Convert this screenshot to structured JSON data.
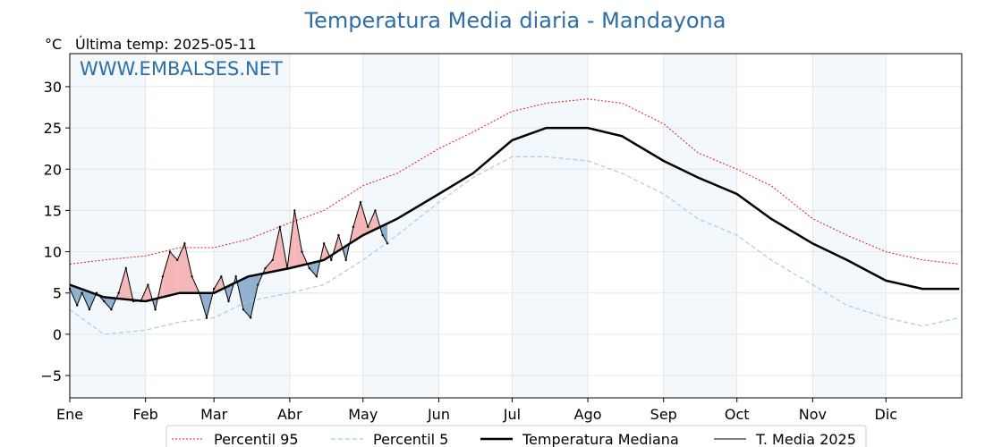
{
  "chart_data": {
    "type": "line",
    "title": "Temperatura Media diaria - Mandayona",
    "unit_label": "°C",
    "last_update_label": "Última temp: 2025-05-11",
    "watermark": "WWW.EMBALSES.NET",
    "xlabel": "",
    "ylabel": "",
    "ylim": [
      -7.7,
      34.0
    ],
    "yticks": [
      -5,
      0,
      5,
      10,
      15,
      20,
      25,
      30
    ],
    "grid": true,
    "legend_position": "bottom",
    "months": [
      "Ene",
      "Feb",
      "Mar",
      "Abr",
      "May",
      "Jun",
      "Jul",
      "Ago",
      "Sep",
      "Oct",
      "Nov",
      "Dic"
    ],
    "x_days": [
      1,
      15,
      32,
      46,
      60,
      74,
      91,
      105,
      121,
      135,
      152,
      166,
      182,
      196,
      213,
      227,
      244,
      258,
      274,
      288,
      305,
      319,
      335,
      350,
      365
    ],
    "series": [
      {
        "name": "Percentil 95",
        "color": "#e31a1c",
        "style": "dotted",
        "values": [
          8.5,
          9.0,
          9.5,
          10.5,
          10.5,
          11.5,
          13.5,
          15.0,
          18.0,
          19.5,
          22.5,
          24.5,
          27.0,
          28.0,
          28.5,
          28.0,
          25.5,
          22.0,
          20.0,
          18.0,
          14.0,
          12.0,
          10.0,
          9.0,
          8.5
        ]
      },
      {
        "name": "Percentil 5",
        "color": "#a6cee3",
        "style": "dashed",
        "values": [
          3.0,
          0.0,
          0.5,
          1.5,
          2.0,
          4.0,
          5.0,
          6.0,
          9.0,
          12.0,
          16.0,
          19.0,
          21.5,
          21.5,
          21.0,
          19.5,
          17.0,
          14.0,
          12.0,
          9.0,
          6.0,
          3.5,
          2.0,
          1.0,
          2.0
        ]
      },
      {
        "name": "Temperatura Mediana",
        "color": "#000000",
        "style": "solid-thick",
        "values": [
          6.0,
          4.5,
          4.0,
          5.0,
          5.0,
          7.0,
          8.0,
          9.0,
          12.0,
          14.0,
          17.0,
          19.5,
          23.5,
          25.0,
          25.0,
          24.0,
          21.0,
          19.0,
          17.0,
          14.0,
          11.0,
          9.0,
          6.5,
          5.5,
          5.5
        ]
      },
      {
        "name": "T. Media 2025",
        "color": "#000000",
        "style": "solid-thin",
        "x": [
          1,
          4,
          6,
          9,
          12,
          15,
          18,
          21,
          24,
          27,
          30,
          33,
          36,
          39,
          42,
          45,
          48,
          51,
          54,
          57,
          60,
          63,
          66,
          69,
          72,
          75,
          78,
          81,
          84,
          87,
          90,
          93,
          96,
          99,
          102,
          105,
          108,
          111,
          114,
          117,
          120,
          123,
          126,
          129,
          131
        ],
        "values": [
          5.5,
          3.5,
          5.0,
          3.0,
          5.0,
          4.0,
          3.0,
          5.0,
          8.0,
          4.0,
          4.0,
          6.0,
          3.0,
          7.0,
          10.0,
          9.0,
          11.0,
          7.0,
          5.0,
          2.0,
          5.5,
          7.0,
          4.0,
          7.0,
          3.0,
          2.0,
          6.0,
          8.0,
          9.0,
          13.0,
          8.0,
          15.0,
          10.0,
          8.0,
          7.0,
          11.0,
          9.0,
          12.0,
          9.0,
          13.0,
          16.0,
          13.0,
          15.0,
          12.0,
          11.0
        ]
      }
    ],
    "fill_above_color": "#f4b6b6",
    "fill_below_color": "#8fb0ce"
  }
}
